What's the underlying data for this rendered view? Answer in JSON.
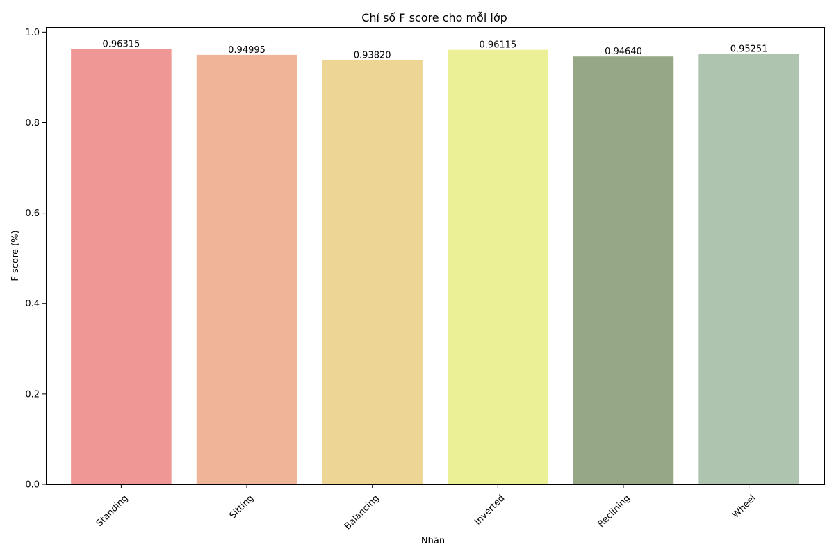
{
  "chart_data": {
    "type": "bar",
    "title": "Chỉ số F score cho mỗi lớp",
    "xlabel": "Nhãn",
    "ylabel": "F score (%)",
    "categories": [
      "Standing",
      "Sitting",
      "Balancing",
      "Inverted",
      "Reclining",
      "Wheel"
    ],
    "values": [
      0.96315,
      0.94995,
      0.9382,
      0.96115,
      0.9464,
      0.95251
    ],
    "value_labels": [
      "0.96315",
      "0.94995",
      "0.93820",
      "0.96115",
      "0.94640",
      "0.95251"
    ],
    "colors": [
      "#ef9795",
      "#efb598",
      "#edd596",
      "#ebef96",
      "#95a785",
      "#aec4ae"
    ],
    "ylim": [
      0,
      1.0113
    ],
    "yticks": [
      0.0,
      0.2,
      0.4,
      0.6,
      0.8,
      1.0
    ],
    "ytick_labels": [
      "0.0",
      "0.2",
      "0.4",
      "0.6",
      "0.8",
      "1.0"
    ],
    "grid": false,
    "legend": "none"
  }
}
